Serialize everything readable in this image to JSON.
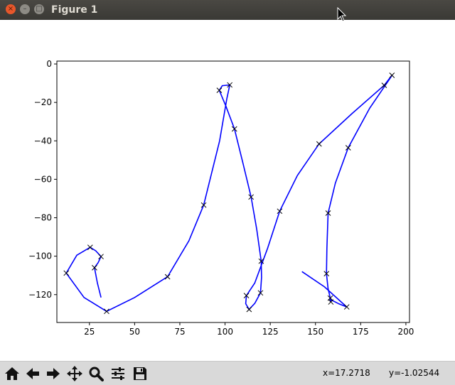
{
  "window": {
    "title": "Figure 1"
  },
  "titlebar_buttons": {
    "close": "×",
    "minimize": "–",
    "maximize": "□"
  },
  "toolbar": {
    "buttons": [
      "home",
      "back",
      "forward",
      "pan",
      "zoom",
      "configure-subplots",
      "save"
    ],
    "coord_x": "x=17.2718",
    "coord_y": "y=-1.02544"
  },
  "chart_data": {
    "type": "line",
    "title": "",
    "xlabel": "",
    "ylabel": "",
    "xlim": [
      7,
      202
    ],
    "ylim": [
      -134.5,
      1.5
    ],
    "xticks": [
      25,
      50,
      75,
      100,
      125,
      150,
      175,
      200
    ],
    "xtick_labels": [
      "25",
      "50",
      "75",
      "100",
      "125",
      "150",
      "175",
      "200"
    ],
    "yticks": [
      0,
      -20,
      -40,
      -60,
      -80,
      -100,
      -120
    ],
    "ytick_labels": [
      "0",
      "−20",
      "−40",
      "−60",
      "−80",
      "−100",
      "−120"
    ],
    "grid": false,
    "line_color": "#0000ff",
    "marker_color": "#000000",
    "curve": [
      [
        31.4,
        -121.5
      ],
      [
        29.4,
        -114
      ],
      [
        27.8,
        -106
      ],
      [
        29.8,
        -103.4
      ],
      [
        31.4,
        -100.2
      ],
      [
        28.5,
        -97.2
      ],
      [
        25.4,
        -95.4
      ],
      [
        18,
        -99.5
      ],
      [
        12.2,
        -108.8
      ],
      [
        22,
        -121.5
      ],
      [
        34.5,
        -128.7
      ],
      [
        50,
        -121.5
      ],
      [
        68.2,
        -110.7
      ],
      [
        80,
        -92
      ],
      [
        88.2,
        -73.4
      ],
      [
        97,
        -40
      ],
      [
        101,
        -18
      ],
      [
        102.6,
        -10.9
      ],
      [
        98.5,
        -11.3
      ],
      [
        96.8,
        -13.7
      ],
      [
        100.5,
        -22
      ],
      [
        105.2,
        -33.8
      ],
      [
        110,
        -52
      ],
      [
        114.4,
        -69.2
      ],
      [
        117.5,
        -86
      ],
      [
        120,
        -102.6
      ],
      [
        120.2,
        -111
      ],
      [
        119.6,
        -119.1
      ],
      [
        116.5,
        -124.5
      ],
      [
        113.3,
        -127.7
      ],
      [
        111.4,
        -124.7
      ],
      [
        111.8,
        -120.5
      ],
      [
        116.4,
        -114
      ],
      [
        123.5,
        -96
      ],
      [
        130.2,
        -76.6
      ],
      [
        140,
        -58
      ],
      [
        152,
        -41.6
      ],
      [
        170,
        -26
      ],
      [
        188,
        -11.1
      ],
      [
        192.3,
        -5.9
      ],
      [
        191.5,
        -7.1
      ],
      [
        180,
        -23
      ],
      [
        168.1,
        -43.6
      ],
      [
        161,
        -62
      ],
      [
        157,
        -77.6
      ],
      [
        156.3,
        -96
      ],
      [
        156.1,
        -109.1
      ],
      [
        157,
        -117
      ],
      [
        158.2,
        -121.8
      ],
      [
        158.5,
        -123.8
      ],
      [
        158,
        -122.4
      ],
      [
        163,
        -124.8
      ],
      [
        167.3,
        -126.4
      ],
      [
        155,
        -116
      ],
      [
        142.5,
        -108
      ]
    ],
    "points": [
      [
        25.4,
        -95.4
      ],
      [
        31.4,
        -100.2
      ],
      [
        27.8,
        -106
      ],
      [
        12.2,
        -108.8
      ],
      [
        34.5,
        -128.7
      ],
      [
        68.2,
        -110.7
      ],
      [
        88.2,
        -73.4
      ],
      [
        96.8,
        -13.7
      ],
      [
        102.6,
        -10.9
      ],
      [
        105.2,
        -33.8
      ],
      [
        114.4,
        -69.2
      ],
      [
        120,
        -102.6
      ],
      [
        119.6,
        -119.1
      ],
      [
        111.8,
        -120.5
      ],
      [
        113.3,
        -127.7
      ],
      [
        130.2,
        -76.6
      ],
      [
        152,
        -41.6
      ],
      [
        188,
        -11.1
      ],
      [
        192.3,
        -5.9
      ],
      [
        168.1,
        -43.6
      ],
      [
        157,
        -77.6
      ],
      [
        156.1,
        -109.1
      ],
      [
        158.2,
        -121.8
      ],
      [
        158.5,
        -123.8
      ],
      [
        167.3,
        -126.4
      ]
    ]
  }
}
